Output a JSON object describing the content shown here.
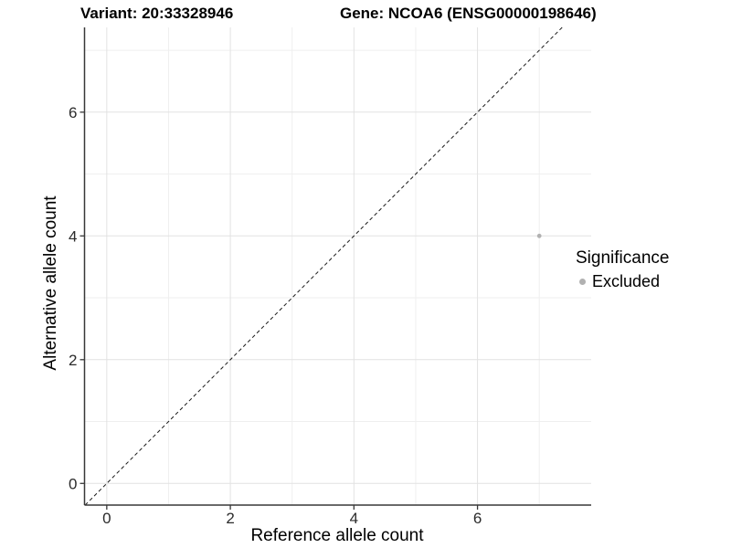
{
  "header": {
    "variant_title": "Variant: 20:33328946",
    "gene_title": "Gene: NCOA6 (ENSG00000198646)"
  },
  "chart_data": {
    "type": "scatter",
    "xlabel": "Reference allele count",
    "ylabel": "Alternative allele count",
    "xlim": [
      -0.36,
      7.84
    ],
    "ylim": [
      -0.35,
      7.37
    ],
    "x_major_ticks": [
      0,
      2,
      4,
      6
    ],
    "y_major_ticks": [
      0,
      2,
      4,
      6
    ],
    "x_minor_gridlines": [
      1,
      3,
      5,
      7
    ],
    "y_minor_gridlines": [
      1,
      3,
      5,
      7
    ],
    "grid": true,
    "points": [
      {
        "x": 7,
        "y": 4,
        "significance": "Excluded",
        "color": "#b1b1b1",
        "radius_px": 2.4
      }
    ],
    "reference_line": {
      "type": "identity",
      "equation": "y = x",
      "style": "dashed",
      "color": "#1a1a1a"
    },
    "legend": {
      "title": "Significance",
      "position": "right",
      "entries": [
        {
          "label": "Excluded",
          "color": "#b1b1b1",
          "marker": "circle"
        }
      ]
    },
    "style_colors": {
      "major_grid": "#e2e2e2",
      "minor_grid": "#efefef",
      "axis_line": "#383838",
      "tick_label": "#2b2b2b",
      "axis_title": "#000000"
    }
  }
}
